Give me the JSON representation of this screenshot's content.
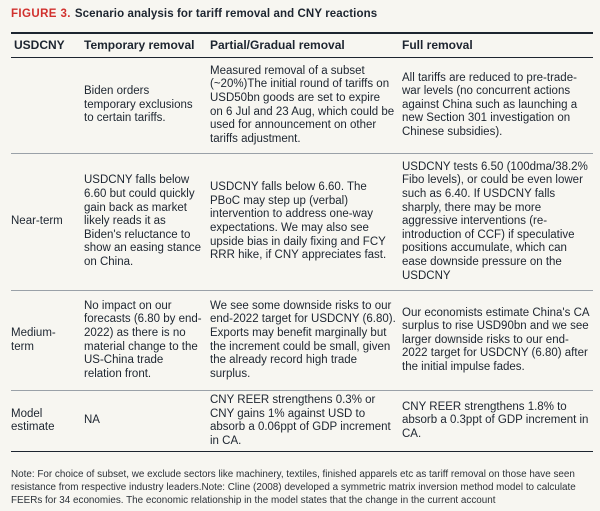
{
  "figure": {
    "label": "FIGURE 3.",
    "title": "Scenario analysis for tariff removal and CNY reactions"
  },
  "table": {
    "headers": [
      "USDCNY",
      "Temporary removal",
      "Partial/Gradual removal",
      "Full removal"
    ],
    "rows": [
      {
        "label": "",
        "temporary": "Biden orders temporary exclusions to certain tariffs.",
        "partial": "Measured removal of a subset (~20%)The initial round of tariffs on USD50bn goods are set to expire on 6 Jul and 23 Aug, which could be used for announcement on other tariffs adjustment.",
        "full": "All tariffs are reduced to pre-trade-war levels (no concurrent actions against China such as launching a new Section 301 investigation on Chinese subsidies)."
      },
      {
        "label": "Near-term",
        "temporary": "USDCNY falls below 6.60 but could quickly gain back as market likely reads it as Biden's reluctance to show an easing stance on China.",
        "partial": "USDCNY falls below 6.60. The PBoC may step up (verbal) intervention to address one-way expectations. We may also see upside bias in daily fixing and FCY RRR hike, if CNY appreciates fast.",
        "full": "USDCNY tests 6.50 (100dma/38.2% Fibo levels), or could be even lower such as 6.40. If USDCNY falls sharply, there may be more aggressive interventions (re-introduction of CCF) if speculative positions accumulate, which can ease downside pressure on the USDCNY"
      },
      {
        "label": "Medium-term",
        "temporary": "No impact on our forecasts (6.80 by end-2022) as there is no material change to the US-China trade relation front.",
        "partial": "We see some downside risks to our end-2022 target for USDCNY (6.80). Exports may benefit marginally but the increment could be small, given the already record high trade surplus.",
        "full": "Our economists estimate China's CA surplus to rise USD90bn and we see larger downside risks to our end-2022 target for USDCNY (6.80) after the initial impulse fades."
      },
      {
        "label": "Model estimate",
        "temporary": "NA",
        "partial": "CNY REER strengthens 0.3% or CNY gains 1% against USD to absorb a 0.06ppt of GDP increment in CA.",
        "full": "CNY REER strengthens 1.8% to absorb a 0.3ppt of GDP increment in CA."
      }
    ]
  },
  "note": "Note: For choice of subset, we exclude sectors like machinery, textiles, finished apparels etc as tariff removal on those have seen resistance from respective industry leaders.Note: Cline (2008) developed a symmetric matrix inversion method model to calculate FEERs for 34 economies. The economic relationship in the model states that the change in the current account"
}
